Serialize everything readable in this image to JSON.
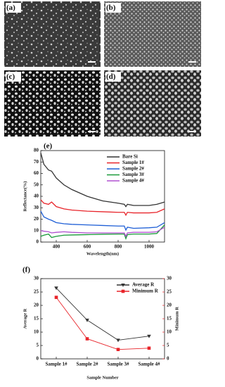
{
  "panels": [
    {
      "label": "(a)"
    },
    {
      "label": "(b)"
    },
    {
      "label": "(c)"
    },
    {
      "label": "(d)"
    }
  ],
  "chart_data": [
    {
      "type": "line",
      "panel_label": "(e)",
      "x_label": "Wavelength(nm)",
      "y_label": "Reflectance(%)",
      "x": [
        300,
        320,
        350,
        370,
        400,
        450,
        500,
        600,
        700,
        800,
        840,
        850,
        860,
        900,
        1000,
        1050,
        1100
      ],
      "xlim": [
        300,
        1100
      ],
      "xticks": [
        400,
        600,
        800,
        1000
      ],
      "ylim": [
        0,
        80
      ],
      "yticks": [
        0,
        10,
        20,
        30,
        40,
        50,
        60,
        70,
        80
      ],
      "legend": "upper right",
      "series": [
        {
          "name": "Bare Si",
          "color": "#333333",
          "values": [
            78,
            68,
            63,
            62,
            56,
            50,
            46,
            40,
            36,
            34,
            33,
            31,
            33,
            32,
            32,
            33,
            35
          ]
        },
        {
          "name": "Sample 1#",
          "color": "#e8242a",
          "values": [
            37,
            34,
            33,
            35,
            31,
            29,
            28,
            27,
            26.5,
            26,
            26,
            23.5,
            26,
            25.5,
            25.5,
            26,
            29
          ]
        },
        {
          "name": "Sample 2#",
          "color": "#1f5fd6",
          "values": [
            27,
            22,
            20,
            19,
            17,
            16,
            15.5,
            15,
            14.5,
            14,
            14,
            10.5,
            13,
            12,
            12.5,
            13,
            17
          ]
        },
        {
          "name": "Sample 3#",
          "color": "#1a9a3a",
          "values": [
            5,
            6,
            7,
            4,
            5,
            6,
            6.2,
            6.5,
            6.8,
            7,
            7,
            3,
            6.5,
            7,
            7,
            7.5,
            15
          ]
        },
        {
          "name": "Sample 4#",
          "color": "#b050d0",
          "values": [
            10,
            9.5,
            9,
            8,
            8.5,
            9,
            8.5,
            8,
            8,
            8,
            8,
            5,
            8,
            8.5,
            8.5,
            9,
            13
          ]
        }
      ]
    },
    {
      "type": "line",
      "panel_label": "(f)",
      "x_label": "Sample Number",
      "y_label": "Average R",
      "y2_label": "Minimum R",
      "categories": [
        "Sample 1#",
        "Sample 2#",
        "Sample 3#",
        "Sample 4#"
      ],
      "ylim": [
        0,
        30
      ],
      "yticks": [
        0,
        5,
        10,
        15,
        20,
        25,
        30
      ],
      "y2lim": [
        0,
        30
      ],
      "y2ticks": [
        0,
        5,
        10,
        15,
        20,
        25,
        30
      ],
      "legend": "upper right",
      "series": [
        {
          "name": "Average R",
          "color": "#333333",
          "marker": "triangle-down",
          "values": [
            26.5,
            14.5,
            7,
            8.5
          ]
        },
        {
          "name": "Minimum R",
          "color": "#e8242a",
          "marker": "square",
          "axis": "y2",
          "values": [
            23,
            7.5,
            3.5,
            4
          ]
        }
      ]
    }
  ]
}
